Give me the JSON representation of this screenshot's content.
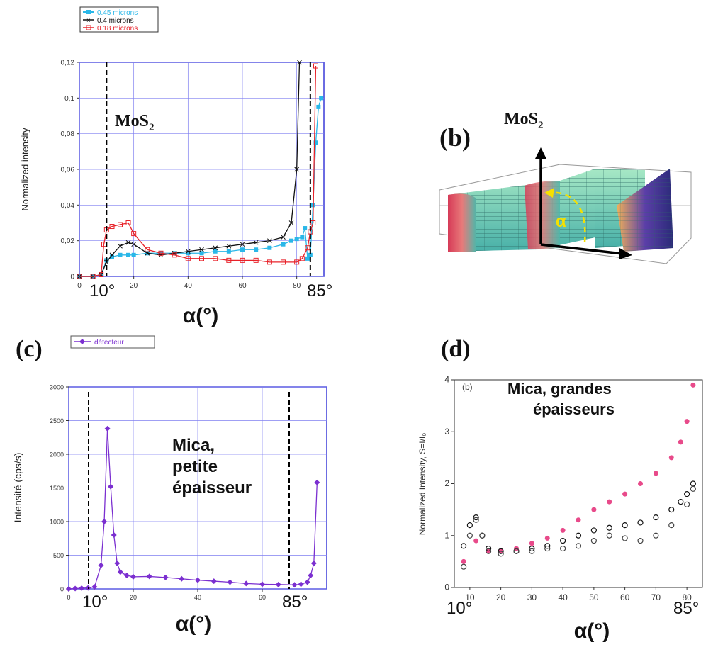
{
  "panels": {
    "a": {
      "label_overlay": "MoS",
      "label_sub": "2",
      "ylabel": "Normalized intensity",
      "xlabel": "α(°)",
      "mark_left": "10°",
      "mark_right": "85°",
      "legend": [
        "0.45 microns",
        "0.4 microns",
        "0.18 microns"
      ]
    },
    "b": {
      "panel_label": "(b)",
      "title": "MoS",
      "title_sub": "2",
      "alpha": "α"
    },
    "c": {
      "panel_label": "(c)",
      "ylabel": "Intensité (cps/s)",
      "xlabel": "α(°)",
      "annotation": [
        "Mica,",
        "petite",
        "épaisseur"
      ],
      "legend": "détecteur",
      "mark_left": "10°",
      "mark_right": "85°"
    },
    "d": {
      "panel_label": "(d)",
      "inner_label": "(b)",
      "ylabel": "Normalized Intensity, S=I/I₀",
      "xlabel": "α(°)",
      "annotation": [
        "Mica, grandes",
        "épaisseurs"
      ],
      "mark_left": "10°",
      "mark_right": "85°"
    }
  },
  "colors": {
    "s045": "#2ab7e8",
    "s04": "#111111",
    "s018": "#e8222a",
    "detecteur": "#7b2fd0",
    "frame_blue": "#3a3ad8",
    "grid_blue": "#7f7ff0"
  },
  "chart_data": [
    {
      "type": "line",
      "panel": "a",
      "xlabel": "α(°)",
      "ylabel": "Normalized intensity",
      "xlim": [
        0,
        90
      ],
      "ylim": [
        0,
        0.12
      ],
      "xticks": [
        0,
        20,
        40,
        60,
        80
      ],
      "yticks": [
        0,
        0.02,
        0.04,
        0.06,
        0.08,
        0.1,
        0.12
      ],
      "ytick_labels": [
        "0",
        "0,02",
        "0,04",
        "0,06",
        "0,08",
        "0,1",
        "0,12"
      ],
      "vlines": [
        10,
        85
      ],
      "legend_position": "top-left",
      "series": [
        {
          "name": "0.45 microns",
          "color": "#2ab7e8",
          "x": [
            0,
            5,
            8,
            10,
            12,
            15,
            18,
            20,
            25,
            30,
            35,
            40,
            45,
            50,
            55,
            60,
            65,
            70,
            75,
            78,
            80,
            82,
            83,
            84,
            85,
            86,
            87,
            88,
            89
          ],
          "y": [
            0,
            0,
            0.001,
            0.009,
            0.011,
            0.012,
            0.012,
            0.012,
            0.013,
            0.013,
            0.013,
            0.013,
            0.013,
            0.014,
            0.014,
            0.015,
            0.015,
            0.016,
            0.018,
            0.02,
            0.021,
            0.022,
            0.027,
            0.01,
            0.012,
            0.04,
            0.075,
            0.095,
            0.1
          ]
        },
        {
          "name": "0.4 microns",
          "color": "#111111",
          "x": [
            0,
            5,
            8,
            10,
            12,
            15,
            18,
            20,
            25,
            30,
            35,
            40,
            45,
            50,
            55,
            60,
            65,
            70,
            75,
            78,
            80,
            81
          ],
          "y": [
            0,
            0,
            0.001,
            0.008,
            0.012,
            0.017,
            0.019,
            0.018,
            0.013,
            0.012,
            0.013,
            0.014,
            0.015,
            0.016,
            0.017,
            0.018,
            0.019,
            0.02,
            0.022,
            0.03,
            0.06,
            0.12
          ]
        },
        {
          "name": "0.18 microns",
          "color": "#e8222a",
          "x": [
            0,
            5,
            8,
            9,
            10,
            12,
            15,
            18,
            20,
            25,
            30,
            35,
            40,
            45,
            50,
            55,
            60,
            65,
            70,
            75,
            80,
            82,
            84,
            85,
            86,
            87
          ],
          "y": [
            0,
            0,
            0.001,
            0.018,
            0.026,
            0.028,
            0.029,
            0.03,
            0.024,
            0.015,
            0.013,
            0.012,
            0.01,
            0.01,
            0.01,
            0.009,
            0.009,
            0.009,
            0.008,
            0.008,
            0.008,
            0.01,
            0.016,
            0.025,
            0.03,
            0.118
          ]
        }
      ]
    },
    {
      "type": "line",
      "panel": "c",
      "xlabel": "α(°)",
      "ylabel": "Intensité (cps/s)",
      "xlim": [
        0,
        80
      ],
      "ylim": [
        0,
        3000
      ],
      "xticks": [
        0,
        20,
        40,
        60
      ],
      "yticks": [
        0,
        500,
        1000,
        1500,
        2000,
        2500,
        3000
      ],
      "vlines": [
        10,
        85
      ],
      "legend_position": "top-left",
      "series": [
        {
          "name": "détecteur",
          "color": "#7b2fd0",
          "x": [
            0,
            2,
            4,
            6,
            8,
            10,
            11,
            12,
            13,
            14,
            15,
            16,
            18,
            20,
            25,
            30,
            35,
            40,
            45,
            50,
            55,
            60,
            65,
            70,
            72,
            74,
            75,
            76,
            77
          ],
          "y": [
            0,
            5,
            10,
            15,
            30,
            350,
            1000,
            2380,
            1520,
            800,
            380,
            250,
            200,
            180,
            185,
            170,
            150,
            130,
            115,
            100,
            80,
            70,
            65,
            60,
            70,
            100,
            200,
            380,
            1580
          ]
        }
      ]
    },
    {
      "type": "scatter",
      "panel": "d",
      "xlabel": "α(°)",
      "ylabel": "Normalized Intensity, S=I/I₀",
      "xlim": [
        5,
        85
      ],
      "ylim": [
        0,
        4
      ],
      "xticks": [
        10,
        20,
        30,
        40,
        50,
        60,
        70,
        80
      ],
      "yticks": [
        0,
        1,
        2,
        3,
        4
      ],
      "series": [
        {
          "name": "",
          "color": "#e84a8a",
          "x": [
            8,
            12,
            16,
            20,
            25,
            30,
            35,
            40,
            45,
            50,
            55,
            60,
            65,
            70,
            75,
            78,
            80,
            82
          ],
          "y": [
            0.5,
            0.9,
            0.7,
            0.7,
            0.75,
            0.85,
            0.95,
            1.1,
            1.3,
            1.5,
            1.65,
            1.8,
            2.0,
            2.2,
            2.5,
            2.8,
            3.2,
            3.9
          ]
        },
        {
          "name": "",
          "color": "#111111",
          "x": [
            8,
            10,
            12,
            14,
            16,
            20,
            25,
            30,
            35,
            40,
            45,
            50,
            55,
            60,
            65,
            70,
            75,
            78,
            80,
            82
          ],
          "y": [
            0.8,
            1.2,
            1.35,
            1.0,
            0.75,
            0.7,
            0.7,
            0.75,
            0.8,
            0.9,
            1.0,
            1.1,
            1.15,
            1.2,
            1.25,
            1.35,
            1.5,
            1.65,
            1.8,
            2.0
          ]
        },
        {
          "name": "",
          "color": "#444444",
          "x": [
            8,
            10,
            12,
            14,
            16,
            20,
            25,
            30,
            35,
            40,
            45,
            50,
            55,
            60,
            65,
            70,
            75,
            80,
            82
          ],
          "y": [
            0.4,
            1.0,
            1.3,
            1.0,
            0.7,
            0.65,
            0.7,
            0.7,
            0.75,
            0.75,
            0.8,
            0.9,
            1.0,
            0.95,
            0.9,
            1.0,
            1.2,
            1.6,
            1.9
          ]
        }
      ]
    }
  ]
}
